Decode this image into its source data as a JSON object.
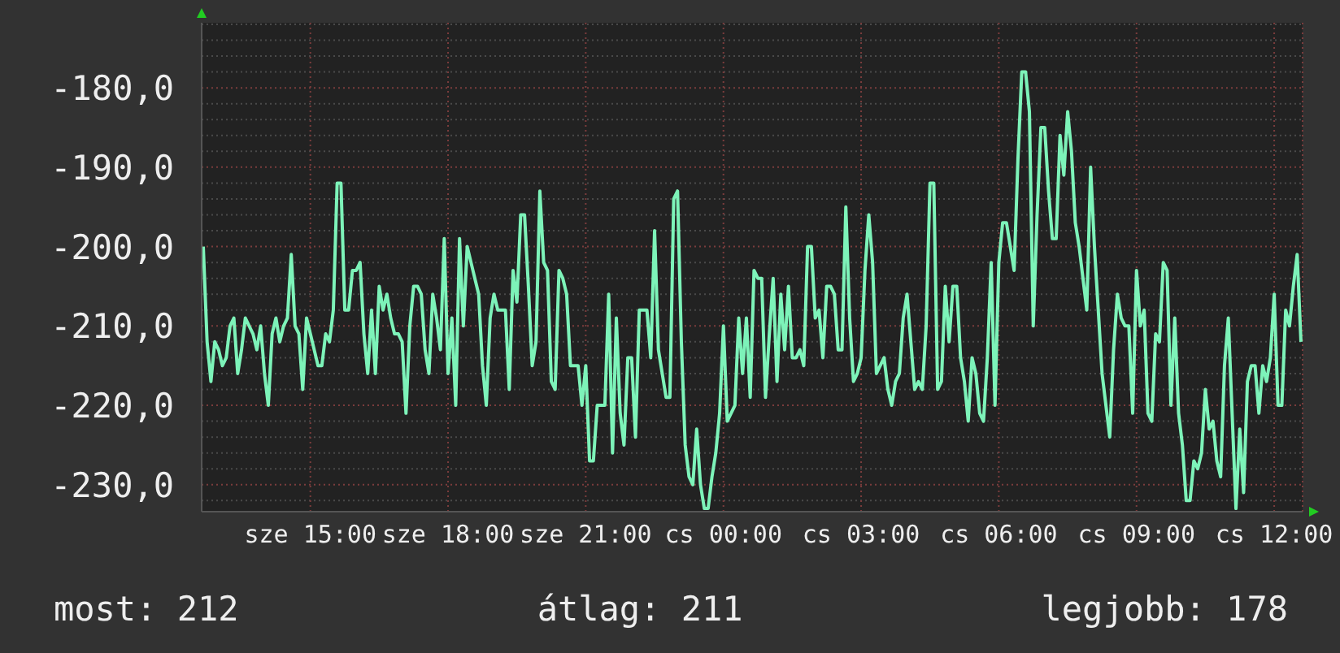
{
  "chart_data": {
    "type": "line",
    "color": "#7df3b9",
    "categories": [
      null,
      null,
      null,
      null,
      null,
      null,
      null,
      null,
      null,
      null,
      null,
      null,
      null,
      null,
      null,
      null,
      null,
      null,
      null,
      null,
      null,
      null,
      null,
      null,
      null,
      null,
      null,
      null,
      "sze 15:00",
      null,
      null,
      null,
      null,
      null,
      null,
      null,
      null,
      null,
      null,
      null,
      null,
      null,
      null,
      null,
      null,
      null,
      null,
      null,
      null,
      null,
      null,
      null,
      null,
      null,
      null,
      null,
      null,
      null,
      null,
      null,
      null,
      null,
      null,
      null,
      "sze 18:00",
      null,
      null,
      null,
      null,
      null,
      null,
      null,
      null,
      null,
      null,
      null,
      null,
      null,
      null,
      null,
      null,
      null,
      null,
      null,
      null,
      null,
      null,
      null,
      null,
      null,
      null,
      null,
      null,
      null,
      null,
      null,
      null,
      null,
      null,
      null,
      "sze 21:00",
      null,
      null,
      null,
      null,
      null,
      null,
      null,
      null,
      null,
      null,
      null,
      null,
      null,
      null,
      null,
      null,
      null,
      null,
      null,
      null,
      null,
      null,
      null,
      null,
      null,
      null,
      null,
      null,
      null,
      null,
      null,
      null,
      null,
      null,
      null,
      "cs 00:00",
      null,
      null,
      null,
      null,
      null,
      null,
      null,
      null,
      null,
      null,
      null,
      null,
      null,
      null,
      null,
      null,
      null,
      null,
      null,
      null,
      null,
      null,
      null,
      null,
      null,
      null,
      null,
      null,
      null,
      null,
      null,
      null,
      null,
      null,
      null,
      "cs 03:00",
      null,
      null,
      null,
      null,
      null,
      null,
      null,
      null,
      null,
      null,
      null,
      null,
      null,
      null,
      null,
      null,
      null,
      null,
      null,
      null,
      null,
      null,
      null,
      null,
      null,
      null,
      null,
      null,
      null,
      null,
      null,
      null,
      null,
      null,
      null,
      "cs 06:00",
      null,
      null,
      null,
      null,
      null,
      null,
      null,
      null,
      null,
      null,
      null,
      null,
      null,
      null,
      null,
      null,
      null,
      null,
      null,
      null,
      null,
      null,
      null,
      null,
      null,
      null,
      null,
      null,
      null,
      null,
      null,
      null,
      null,
      null,
      null,
      "cs 09:00",
      null,
      null,
      null,
      null,
      null,
      null,
      null,
      null,
      null,
      null,
      null,
      null,
      null,
      null,
      null,
      null,
      null,
      null,
      null,
      null,
      null,
      null,
      null,
      null,
      null,
      null,
      null,
      null,
      null,
      null,
      null,
      null,
      null,
      null,
      null,
      "cs 12:00",
      null,
      null,
      null,
      null,
      null,
      null,
      null
    ],
    "values": [
      -200,
      -212,
      -217,
      -212,
      -213,
      -215,
      -214,
      -210,
      -209,
      -216,
      -213,
      -209,
      -210,
      -211,
      -213,
      -210,
      -216,
      -220,
      -211,
      -209,
      -212,
      -210,
      -209,
      -201,
      -210,
      -211,
      -218,
      -209,
      -211,
      -213,
      -215,
      -215,
      -211,
      -212,
      -208,
      -192,
      -192,
      -208,
      -208,
      -203,
      -203,
      -202,
      -211,
      -216,
      -208,
      -216,
      -205,
      -208,
      -206,
      -209,
      -211,
      -211,
      -212,
      -221,
      -210,
      -205,
      -205,
      -206,
      -213,
      -216,
      -206,
      -209,
      -213,
      -199,
      -216,
      -209,
      -220,
      -199,
      -210,
      -200,
      -202,
      -204,
      -206,
      -215,
      -220,
      -209,
      -206,
      -208,
      -208,
      -208,
      -218,
      -203,
      -207,
      -196,
      -196,
      -205,
      -215,
      -212,
      -193,
      -202,
      -203,
      -217,
      -218,
      -203,
      -204,
      -206,
      -215,
      -215,
      -215,
      -220,
      -215,
      -227,
      -227,
      -220,
      -220,
      -220,
      -206,
      -226,
      -209,
      -221,
      -225,
      -214,
      -214,
      -224,
      -208,
      -208,
      -208,
      -214,
      -198,
      -213,
      -216,
      -219,
      -219,
      -194,
      -193,
      -212,
      -225,
      -229,
      -230,
      -223,
      -230,
      -233,
      -233,
      -229,
      -226,
      -221,
      -210,
      -222,
      -221,
      -220,
      -209,
      -216,
      -209,
      -219,
      -203,
      -204,
      -204,
      -219,
      -211,
      -204,
      -217,
      -206,
      -213,
      -205,
      -214,
      -214,
      -213,
      -215,
      -200,
      -200,
      -209,
      -208,
      -214,
      -205,
      -205,
      -206,
      -213,
      -213,
      -195,
      -209,
      -217,
      -216,
      -214,
      -203,
      -196,
      -202,
      -216,
      -215,
      -214,
      -218,
      -220,
      -217,
      -216,
      -209,
      -206,
      -212,
      -218,
      -217,
      -218,
      -210,
      -192,
      -192,
      -218,
      -217,
      -205,
      -212,
      -205,
      -205,
      -214,
      -217,
      -222,
      -214,
      -216,
      -221,
      -222,
      -214,
      -202,
      -220,
      -202,
      -197,
      -197,
      -200,
      -203,
      -189,
      -178,
      -178,
      -183,
      -210,
      -196,
      -185,
      -185,
      -193,
      -199,
      -199,
      -186,
      -191,
      -183,
      -188,
      -197,
      -200,
      -204,
      -208,
      -190,
      -200,
      -208,
      -216,
      -220,
      -224,
      -213,
      -206,
      -209,
      -210,
      -210,
      -221,
      -203,
      -210,
      -208,
      -221,
      -222,
      -211,
      -212,
      -202,
      -203,
      -220,
      -209,
      -221,
      -225,
      -232,
      -232,
      -227,
      -228,
      -226,
      -218,
      -223,
      -222,
      -227,
      -229,
      -215,
      -209,
      -221,
      -233,
      -223,
      -231,
      -217,
      -215,
      -215,
      -221,
      -215,
      -217,
      -214,
      -206,
      -220,
      -220,
      -208,
      -210,
      -205,
      -201,
      -212
    ],
    "ylim": [
      -233.4,
      -171.8
    ],
    "yticks": [
      {
        "value": -232,
        "label": null
      },
      {
        "value": -230,
        "label": "-230,0"
      },
      {
        "value": -228,
        "label": null
      },
      {
        "value": -226,
        "label": null
      },
      {
        "value": -224,
        "label": null
      },
      {
        "value": -222,
        "label": null
      },
      {
        "value": -220,
        "label": "-220,0"
      },
      {
        "value": -218,
        "label": null
      },
      {
        "value": -216,
        "label": null
      },
      {
        "value": -214,
        "label": null
      },
      {
        "value": -212,
        "label": null
      },
      {
        "value": -210,
        "label": "-210,0"
      },
      {
        "value": -208,
        "label": null
      },
      {
        "value": -206,
        "label": null
      },
      {
        "value": -204,
        "label": null
      },
      {
        "value": -202,
        "label": null
      },
      {
        "value": -200,
        "label": "-200,0"
      },
      {
        "value": -198,
        "label": null
      },
      {
        "value": -196,
        "label": null
      },
      {
        "value": -194,
        "label": null
      },
      {
        "value": -192,
        "label": null
      },
      {
        "value": -190,
        "label": "-190,0"
      },
      {
        "value": -188,
        "label": null
      },
      {
        "value": -186,
        "label": null
      },
      {
        "value": -184,
        "label": null
      },
      {
        "value": -182,
        "label": null
      },
      {
        "value": -180,
        "label": "-180,0"
      },
      {
        "value": -178,
        "label": null
      },
      {
        "value": -176,
        "label": null
      },
      {
        "value": -174,
        "label": null
      },
      {
        "value": -172,
        "label": null
      }
    ],
    "grid": true,
    "annotations": [
      "most: 212",
      "átlag: 211",
      "legjobb: 178"
    ]
  }
}
